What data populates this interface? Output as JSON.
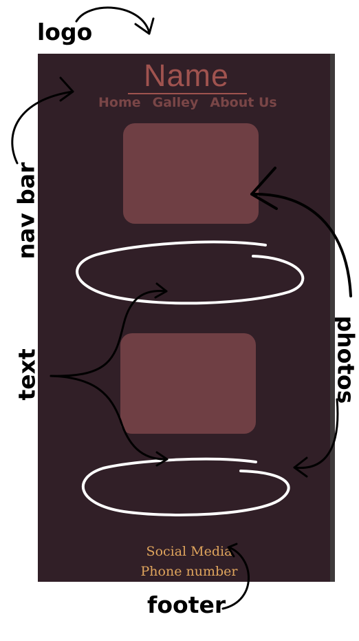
{
  "annotations": {
    "logo": "logo",
    "nav_bar": "nav bar",
    "text": "text",
    "photos": "photos",
    "footer": "footer"
  },
  "mockup": {
    "brand": "Name",
    "nav": [
      "Home",
      "Galley",
      "About Us"
    ],
    "footer_lines": [
      "Social Media",
      "Phone number"
    ]
  },
  "colors": {
    "canvas_bg": "#311f27",
    "brand": "#a0534f",
    "nav": "#7a4647",
    "photo": "#6f3f44",
    "footer": "#e0a55d",
    "ink": "#000000",
    "chalk": "#ffffff"
  }
}
